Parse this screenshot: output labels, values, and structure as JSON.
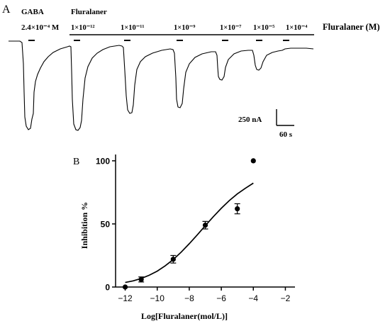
{
  "panel_a": {
    "label": "A",
    "gaba_label": "GABA",
    "gaba_conc": "2.4×10⁻⁴ M",
    "fluralaner_label": "Fluralaner",
    "series_label": "Fluralaner (M)",
    "concentrations": [
      "1×10⁻¹²",
      "1×10⁻¹¹",
      "1×10⁻⁹",
      "1×10⁻⁷",
      "1×10⁻⁵",
      "1×10⁻⁴"
    ],
    "scale_current": "250 nA",
    "scale_time": "60 s"
  },
  "chart_data": {
    "type": "scatter",
    "panel_label": "B",
    "xlabel": "Log[Fluralaner(mol/L)]",
    "ylabel": "Inhibition %",
    "xlim": [
      -12.6,
      -1.4
    ],
    "ylim": [
      0,
      105
    ],
    "xticks": [
      -12,
      -10,
      -8,
      -6,
      -4,
      -2
    ],
    "yticks": [
      0,
      50,
      100
    ],
    "grid": false,
    "legend": "none",
    "points": [
      {
        "x": -12,
        "y": 0,
        "err": 0
      },
      {
        "x": -11,
        "y": 6,
        "err": 2
      },
      {
        "x": -9,
        "y": 22,
        "err": 3
      },
      {
        "x": -7,
        "y": 49,
        "err": 3
      },
      {
        "x": -5,
        "y": 62,
        "err": 4
      },
      {
        "x": -4,
        "y": 100,
        "err": 0
      }
    ],
    "fit_curve": {
      "type": "sigmoidal dose-response",
      "x": [
        -12,
        -11.5,
        -11,
        -10.5,
        -10,
        -9.5,
        -9,
        -8.5,
        -8,
        -7.5,
        -7,
        -6.5,
        -6,
        -5.5,
        -5,
        -4.5,
        -4
      ],
      "y": [
        3.6,
        4.9,
        6.8,
        9.3,
        12.6,
        16.8,
        21.8,
        27.7,
        34.3,
        41.3,
        48.6,
        55.7,
        62.4,
        68.5,
        73.8,
        78.2,
        82.3
      ]
    }
  }
}
